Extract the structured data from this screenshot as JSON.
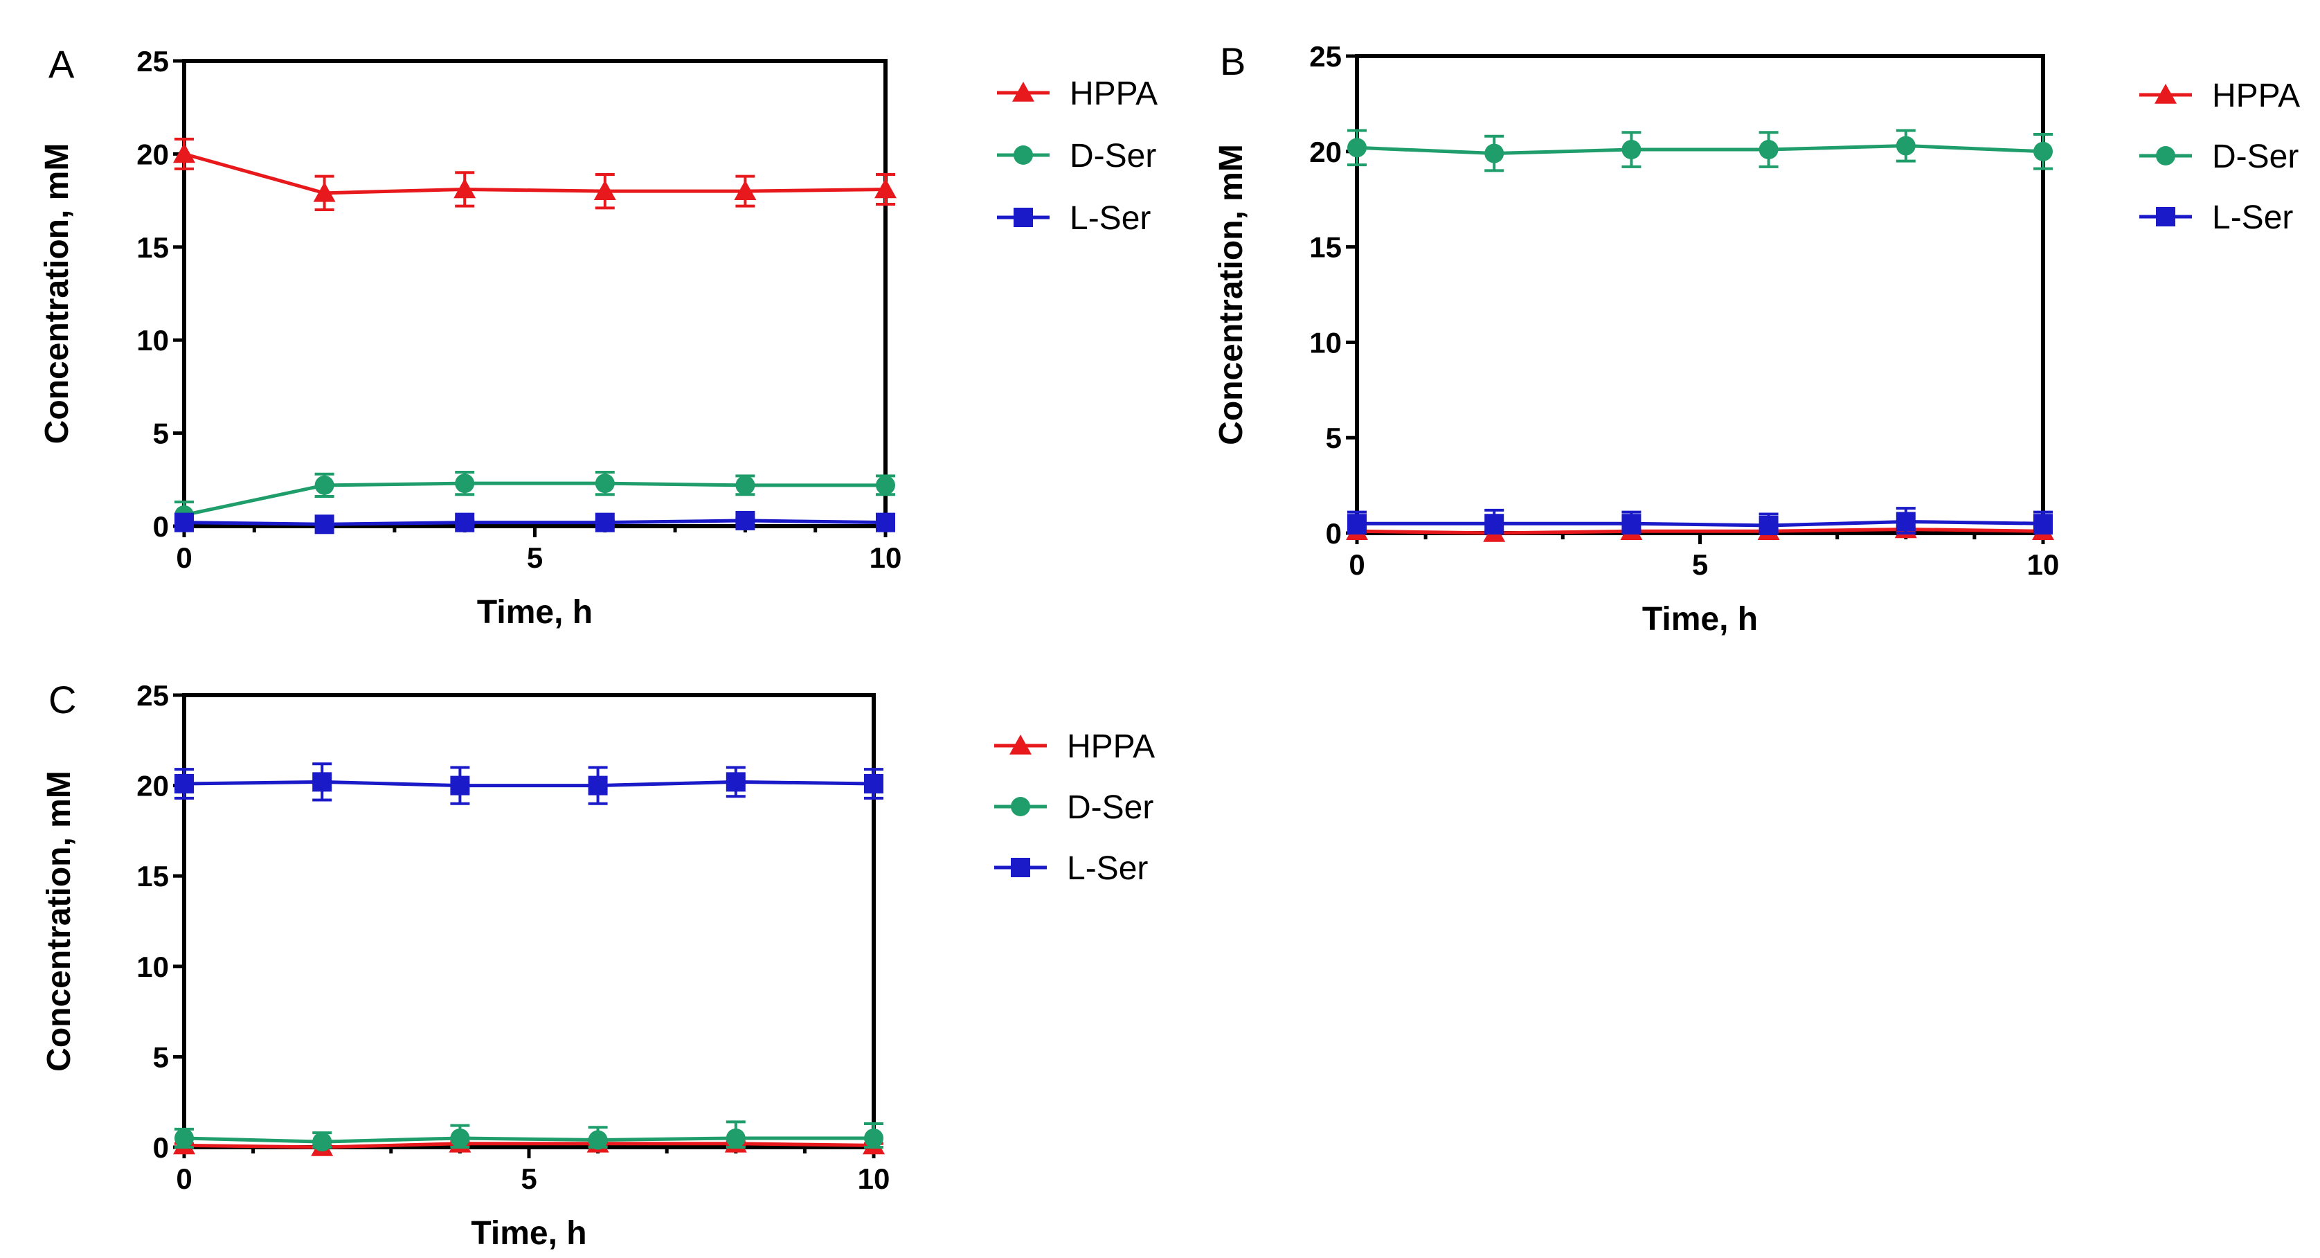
{
  "chart_data": [
    {
      "type": "line",
      "panel_label": "A",
      "xlabel": "Time, h",
      "ylabel": "Concentration, mM",
      "xlim": [
        0,
        10
      ],
      "ylim": [
        0,
        25
      ],
      "xticks": [
        0,
        5,
        10
      ],
      "yticks": [
        0,
        5,
        10,
        15,
        20,
        25
      ],
      "x": [
        0,
        2,
        4,
        6,
        8,
        10
      ],
      "legend_position": "right",
      "series": [
        {
          "name": "HPPA",
          "color": "#e8191c",
          "marker": "triangle",
          "values": [
            20.0,
            17.9,
            18.1,
            18.0,
            18.0,
            18.1
          ],
          "errors": [
            0.8,
            0.9,
            0.9,
            0.9,
            0.8,
            0.8
          ]
        },
        {
          "name": "D-Ser",
          "color": "#1f9e6b",
          "marker": "circle",
          "values": [
            0.6,
            2.2,
            2.3,
            2.3,
            2.2,
            2.2
          ],
          "errors": [
            0.7,
            0.6,
            0.6,
            0.6,
            0.5,
            0.5
          ]
        },
        {
          "name": "L-Ser",
          "color": "#1a1ac8",
          "marker": "square",
          "values": [
            0.2,
            0.1,
            0.2,
            0.2,
            0.3,
            0.2
          ],
          "errors": [
            0.1,
            0.1,
            0.1,
            0.1,
            0.1,
            0.1
          ]
        }
      ]
    },
    {
      "type": "line",
      "panel_label": "B",
      "xlabel": "Time, h",
      "ylabel": "Concentration, mM",
      "xlim": [
        0,
        10
      ],
      "ylim": [
        0,
        25
      ],
      "xticks": [
        0,
        5,
        10
      ],
      "yticks": [
        0,
        5,
        10,
        15,
        20,
        25
      ],
      "x": [
        0,
        2,
        4,
        6,
        8,
        10
      ],
      "legend_position": "right",
      "series": [
        {
          "name": "HPPA",
          "color": "#e8191c",
          "marker": "triangle",
          "values": [
            0.1,
            0.0,
            0.1,
            0.1,
            0.2,
            0.1
          ],
          "errors": [
            0.1,
            0.1,
            0.1,
            0.1,
            0.1,
            0.1
          ]
        },
        {
          "name": "D-Ser",
          "color": "#1f9e6b",
          "marker": "circle",
          "values": [
            20.2,
            19.9,
            20.1,
            20.1,
            20.3,
            20.0
          ],
          "errors": [
            0.9,
            0.9,
            0.9,
            0.9,
            0.8,
            0.9
          ]
        },
        {
          "name": "L-Ser",
          "color": "#1a1ac8",
          "marker": "square",
          "values": [
            0.5,
            0.5,
            0.5,
            0.4,
            0.6,
            0.5
          ],
          "errors": [
            0.6,
            0.7,
            0.6,
            0.6,
            0.7,
            0.6
          ]
        }
      ]
    },
    {
      "type": "line",
      "panel_label": "C",
      "xlabel": "Time, h",
      "ylabel": "Concentration, mM",
      "xlim": [
        0,
        10
      ],
      "ylim": [
        0,
        25
      ],
      "xticks": [
        0,
        5,
        10
      ],
      "yticks": [
        0,
        5,
        10,
        15,
        20,
        25
      ],
      "x": [
        0,
        2,
        4,
        6,
        8,
        10
      ],
      "legend_position": "right",
      "series": [
        {
          "name": "HPPA",
          "color": "#e8191c",
          "marker": "triangle",
          "values": [
            0.1,
            0.0,
            0.2,
            0.2,
            0.2,
            0.1
          ],
          "errors": [
            0.1,
            0.1,
            0.1,
            0.1,
            0.1,
            0.1
          ]
        },
        {
          "name": "D-Ser",
          "color": "#1f9e6b",
          "marker": "circle",
          "values": [
            0.5,
            0.3,
            0.5,
            0.4,
            0.5,
            0.5
          ],
          "errors": [
            0.5,
            0.5,
            0.7,
            0.7,
            0.9,
            0.8
          ]
        },
        {
          "name": "L-Ser",
          "color": "#1a1ac8",
          "marker": "square",
          "values": [
            20.1,
            20.2,
            20.0,
            20.0,
            20.2,
            20.1
          ],
          "errors": [
            0.8,
            1.0,
            1.0,
            1.0,
            0.8,
            0.8
          ]
        }
      ]
    }
  ]
}
